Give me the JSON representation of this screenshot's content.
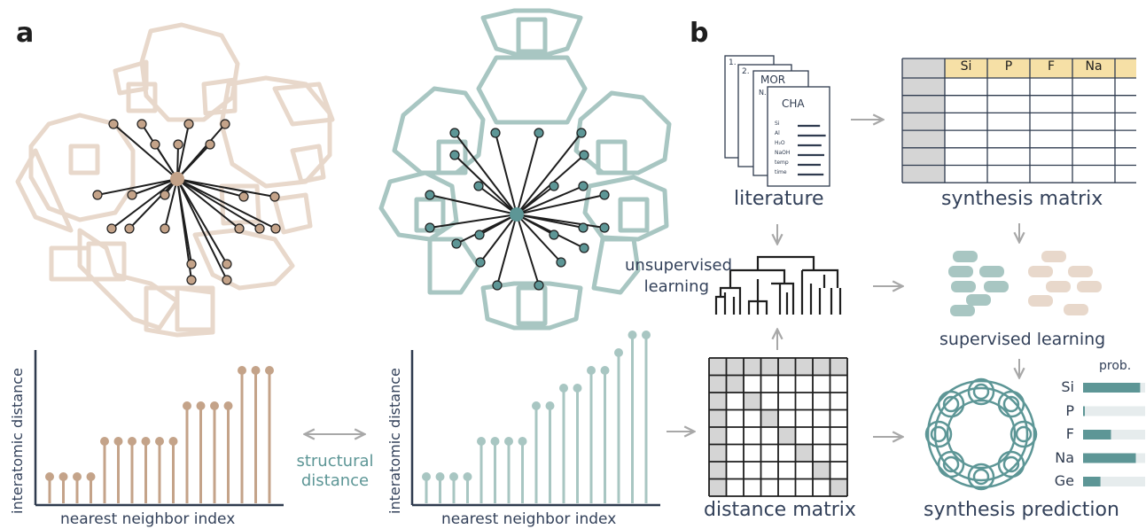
{
  "panels": {
    "a": "a",
    "b": "b"
  },
  "panel_a": {
    "chart_left": {
      "ylabel": "interatomic distance",
      "xlabel": "nearest neighbor index",
      "values": [
        1,
        1,
        1,
        1,
        3,
        3,
        3,
        3,
        3,
        3,
        5,
        5,
        5,
        5,
        7,
        7,
        7
      ]
    },
    "chart_right": {
      "ylabel": "interatomic distance",
      "xlabel": "nearest neighbor index",
      "values": [
        1,
        1,
        1,
        1,
        3,
        3,
        3,
        3,
        5,
        5,
        6,
        6,
        7,
        7,
        8,
        9,
        9
      ]
    },
    "arrow_label_line1": "structural",
    "arrow_label_line2": "distance"
  },
  "panel_b": {
    "literature_caption": "literature",
    "doc_labels": {
      "d1": "1.",
      "d2": "2.",
      "mor": "MOR",
      "n": "N.",
      "cha": "CHA"
    },
    "doc_rows": [
      "Si",
      "Al",
      "H₂O",
      "NaOH",
      "temp",
      "time"
    ],
    "matrix_caption": "synthesis matrix",
    "matrix_headers": [
      "Si",
      "P",
      "F",
      "Na"
    ],
    "unsupervised_line1": "unsupervised",
    "unsupervised_line2": "learning",
    "supervised_caption": "supervised learning",
    "distance_caption": "distance matrix",
    "prediction_caption": "synthesis prediction",
    "prob_header": "prob.",
    "predictions": [
      {
        "element": "Si",
        "prob": 0.92
      },
      {
        "element": "P",
        "prob": 0.02
      },
      {
        "element": "F",
        "prob": 0.45
      },
      {
        "element": "Na",
        "prob": 0.85
      },
      {
        "element": "Ge",
        "prob": 0.28
      }
    ]
  },
  "colors": {
    "beige": "#e8d8cb",
    "tan": "#c4a389",
    "teal": "#5d9696",
    "teal_light": "#a8c6c2",
    "navy": "#2f3b4f",
    "gold": "#f6e0a6",
    "grey": "#d5d5d5"
  }
}
